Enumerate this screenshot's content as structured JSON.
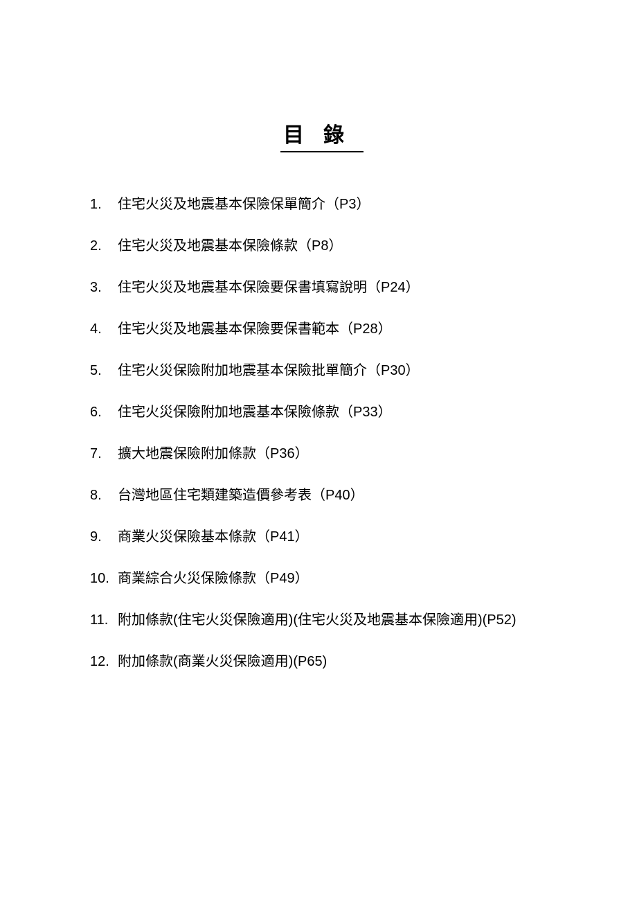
{
  "title": "目錄",
  "toc": {
    "items": [
      {
        "number": "1.",
        "text": "住宅火災及地震基本保險保單簡介（P3）"
      },
      {
        "number": "2.",
        "text": "住宅火災及地震基本保險條款（P8）"
      },
      {
        "number": "3.",
        "text": "住宅火災及地震基本保險要保書填寫說明（P24）"
      },
      {
        "number": "4.",
        "text": "住宅火災及地震基本保險要保書範本（P28）"
      },
      {
        "number": "5.",
        "text": "住宅火災保險附加地震基本保險批單簡介（P30）"
      },
      {
        "number": "6.",
        "text": "住宅火災保險附加地震基本保險條款（P33）"
      },
      {
        "number": "7.",
        "text": "擴大地震保險附加條款（P36）"
      },
      {
        "number": "8.",
        "text": "台灣地區住宅類建築造價參考表（P40）"
      },
      {
        "number": "9.",
        "text": "商業火災保險基本條款（P41）"
      },
      {
        "number": "10.",
        "text": "商業綜合火災保險條款（P49）"
      },
      {
        "number": "11.",
        "text": "附加條款(住宅火災保險適用)(住宅火災及地震基本保險適用)(P52)"
      },
      {
        "number": "12.",
        "text": "附加條款(商業火災保險適用)(P65)"
      }
    ]
  }
}
